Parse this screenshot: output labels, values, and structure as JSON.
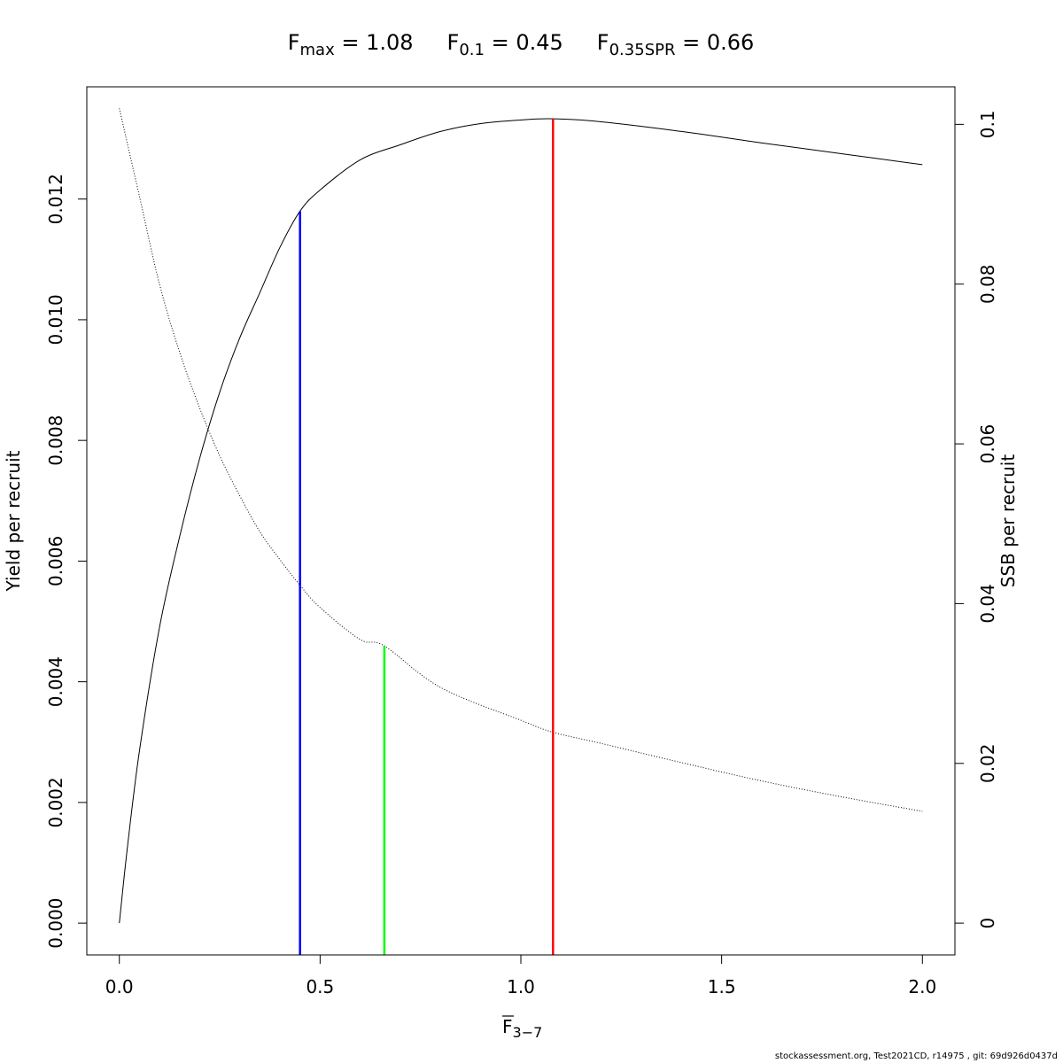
{
  "chart_data": {
    "type": "line",
    "title_parts": [
      {
        "main": "F",
        "sub": "max",
        "value": " = 1.08"
      },
      {
        "main": "F",
        "sub": "0.1",
        "value": " = 0.45"
      },
      {
        "main": "F",
        "sub": "0.35SPR",
        "value": " = 0.66"
      }
    ],
    "xlabel": {
      "main": "F",
      "sub": "3−7",
      "overline": true
    },
    "ylabel_left": "Yield per recruit",
    "ylabel_right": "SSB per recruit",
    "xlim": [
      -0.081,
      2.081
    ],
    "ylim_left": [
      -0.000527,
      0.01386
    ],
    "ylim_right": [
      -0.00398,
      0.1047
    ],
    "x_ticks": [
      0,
      0.5,
      1,
      1.5,
      2
    ],
    "x_tick_labels": [
      "0.0",
      "0.5",
      "1.0",
      "1.5",
      "2.0"
    ],
    "y_left_ticks": [
      0,
      0.002,
      0.004,
      0.006,
      0.008,
      0.01,
      0.012
    ],
    "y_left_tick_labels": [
      "0.000",
      "0.002",
      "0.004",
      "0.006",
      "0.008",
      "0.010",
      "0.012"
    ],
    "y_right_ticks": [
      0,
      0.02,
      0.04,
      0.06,
      0.08,
      0.1
    ],
    "y_right_tick_labels": [
      "0",
      "0.02",
      "0.04",
      "0.06",
      "0.08",
      "0.1"
    ],
    "series": [
      {
        "axis": "left",
        "style": "solid",
        "color": "#000000",
        "x": [
          0,
          0.02,
          0.05,
          0.1,
          0.15,
          0.2,
          0.25,
          0.3,
          0.35,
          0.4,
          0.45,
          0.5,
          0.6,
          0.7,
          0.8,
          0.9,
          1.0,
          1.08,
          1.2,
          1.4,
          1.6,
          1.8,
          2.0
        ],
        "y": [
          0,
          0.00125,
          0.00285,
          0.0049,
          0.0064,
          0.0077,
          0.0088,
          0.0097,
          0.01045,
          0.0112,
          0.0118,
          0.01215,
          0.01265,
          0.0129,
          0.01312,
          0.01325,
          0.01331,
          0.01333,
          0.01328,
          0.01312,
          0.01293,
          0.01275,
          0.01257
        ]
      },
      {
        "axis": "right",
        "style": "dotted",
        "color": "#000000",
        "x": [
          0,
          0.05,
          0.1,
          0.15,
          0.2,
          0.25,
          0.3,
          0.35,
          0.4,
          0.45,
          0.5,
          0.6,
          0.66,
          0.8,
          1.0,
          1.08,
          1.2,
          1.4,
          1.6,
          1.8,
          2.0
        ],
        "y": [
          0.102,
          0.091,
          0.08,
          0.0715,
          0.0645,
          0.0585,
          0.0535,
          0.049,
          0.0455,
          0.0423,
          0.0395,
          0.0355,
          0.0347,
          0.0295,
          0.0254,
          0.0239,
          0.0225,
          0.0201,
          0.0178,
          0.0158,
          0.014
        ]
      }
    ],
    "reference_lines": [
      {
        "x": 0.45,
        "top": 0.0118,
        "axis": "left",
        "color": "#0000ff"
      },
      {
        "x": 0.66,
        "top": 0.0347,
        "axis": "right",
        "color": "#00ff00"
      },
      {
        "x": 1.08,
        "top": 0.01333,
        "axis": "left",
        "color": "#ff0000"
      }
    ],
    "grid": false
  },
  "footer": "stockassessment.org, Test2021CD, r14975 , git: 69d926d0437d"
}
